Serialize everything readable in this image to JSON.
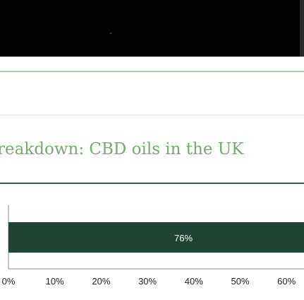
{
  "header": {
    "bar_color": "#020202"
  },
  "colors": {
    "accent": "#74aa6d",
    "rule": "#a9cfa7",
    "bar": "#1e4434"
  },
  "chart_data": {
    "type": "bar",
    "orientation": "horizontal",
    "title": "reakdown: CBD oils in the UK",
    "categories": [
      ""
    ],
    "values": [
      76
    ],
    "data_labels": [
      "76%"
    ],
    "xlim": [
      0,
      100
    ],
    "x_ticks": [
      0,
      10,
      20,
      30,
      40,
      50,
      60
    ],
    "x_tick_labels": [
      "0%",
      "10%",
      "20%",
      "30%",
      "40%",
      "50%",
      "60%"
    ],
    "grid": false
  }
}
